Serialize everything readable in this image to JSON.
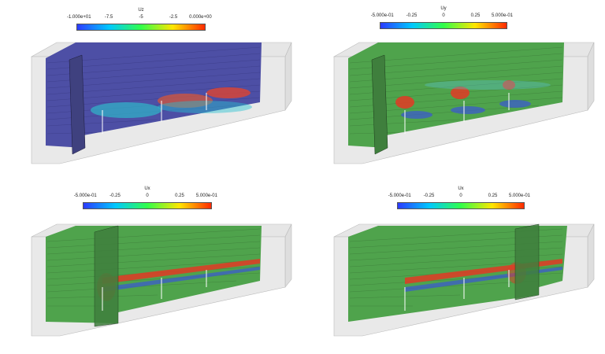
{
  "panels": [
    {
      "colorbar": {
        "title": "Uz",
        "ticks": [
          "-1.000e+01",
          "-7.5",
          "-5",
          "-2.5",
          "0.000e+00"
        ],
        "stops": [
          "#2c3bff",
          "#00c8ff",
          "#31ff4a",
          "#ffe600",
          "#ff2a00"
        ]
      },
      "base_color": "#4d4fa5",
      "stream_color": "#2c2c6e",
      "highlight_color": "#ff3b2a"
    },
    {
      "colorbar": {
        "title": "Uy",
        "ticks": [
          "-5.000e-01",
          "-0.25",
          "0",
          "0.25",
          "5.000e-01"
        ],
        "stops": [
          "#2c3bff",
          "#00c8ff",
          "#31ff4a",
          "#ffe600",
          "#ff2a00"
        ]
      },
      "base_color": "#4fa34c",
      "stream_color": "#2c5b2a",
      "highlight_color": "#e83a22"
    },
    {
      "colorbar": {
        "title": "Ux",
        "ticks": [
          "-5.000e-01",
          "-0.25",
          "0",
          "0.25",
          "5.000e-01"
        ],
        "stops": [
          "#2c3bff",
          "#00c8ff",
          "#31ff4a",
          "#ffe600",
          "#ff2a00"
        ]
      },
      "base_color": "#4fa34c",
      "stream_color": "#2c5b2a",
      "highlight_color": "#e83a22"
    },
    {
      "colorbar": {
        "title": "Ux",
        "ticks": [
          "-5.000e-01",
          "-0.25",
          "0",
          "0.25",
          "5.000e-01"
        ],
        "stops": [
          "#2c3bff",
          "#00c8ff",
          "#31ff4a",
          "#ffe600",
          "#ff2a00"
        ]
      },
      "base_color": "#4fa34c",
      "stream_color": "#2c5b2a",
      "highlight_color": "#e83a22"
    }
  ]
}
